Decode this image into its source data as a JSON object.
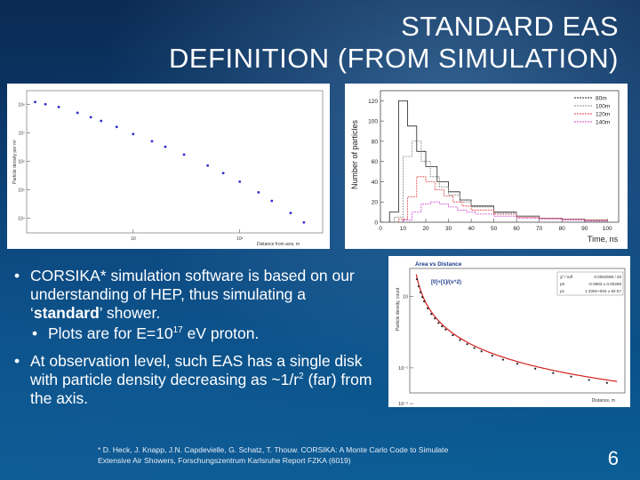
{
  "slide": {
    "title_line1": "STANDARD EAS",
    "title_line2": "DEFINITION (FROM SIMULATION)",
    "bullet1_text": "CORSIKA* simulation software is based on our understanding of HEP, thus simulating a ‘",
    "bullet1_bold": "standard",
    "bullet1_end": "’ shower.",
    "sub_bullet_pre": "Plots are for E=10",
    "sub_bullet_exp": "17",
    "sub_bullet_post": " eV proton.",
    "bullet2_pre": "At observation level, such EAS has a single disk with particle density decreasing as ~1/r",
    "bullet2_exp": "2",
    "bullet2_post": " (far) from the axis.",
    "footnote_line1": "* D. Heck, J. Knapp, J.N. Capdevielle, G. Schatz, T. Thouw. CORSIKA: A Monte Carlo Code to Simulate",
    "footnote_line2": "Extensive Air Showers, Forschungszentrum Karlsruhe Report FZKA (6019)",
    "page_number": "6",
    "bullet_glyph": "•"
  },
  "chart_data": [
    {
      "type": "scatter",
      "ylabel": "Particle density per m²",
      "xlabel": "Distance from axis, m",
      "xscale": "log",
      "yscale": "log",
      "ytick_labels": [
        "10⁸",
        "10⁷",
        "10⁶",
        "10⁵",
        "10⁴",
        "10³"
      ],
      "xtick_labels": [
        "10",
        "10²"
      ],
      "points": [
        [
          1.2,
          120000000.0
        ],
        [
          1.5,
          100000000.0
        ],
        [
          2,
          80000000.0
        ],
        [
          3,
          50000000.0
        ],
        [
          4,
          35000000.0
        ],
        [
          5,
          26000000.0
        ],
        [
          7,
          16000000.0
        ],
        [
          10,
          9000000.0
        ],
        [
          15,
          5000000.0
        ],
        [
          20,
          3200000.0
        ],
        [
          30,
          1700000.0
        ],
        [
          50,
          700000.0
        ],
        [
          70,
          380000.0
        ],
        [
          100,
          190000.0
        ],
        [
          150,
          80000.0
        ],
        [
          200,
          40000.0
        ],
        [
          300,
          15000.0
        ],
        [
          400,
          7000.0
        ]
      ],
      "color": "#2a2ad0"
    },
    {
      "type": "line",
      "ylabel": "Number of particles",
      "xlabel": "Time, ns",
      "xticks": [
        0,
        10,
        20,
        30,
        40,
        50,
        60,
        70,
        80,
        90,
        100
      ],
      "yticks": [
        0,
        20,
        40,
        60,
        80,
        100,
        120
      ],
      "ylim": [
        0,
        130
      ],
      "series": [
        {
          "name": "80m",
          "color": "#222222",
          "x": [
            4,
            8,
            12,
            16,
            20,
            25,
            30,
            35,
            40,
            50,
            60,
            70,
            80,
            90,
            100
          ],
          "y": [
            10,
            120,
            95,
            70,
            55,
            40,
            30,
            22,
            16,
            10,
            6,
            4,
            3,
            2,
            1
          ]
        },
        {
          "name": "100m",
          "color": "#888888",
          "x": [
            6,
            10,
            14,
            18,
            22,
            26,
            30,
            35,
            40,
            50,
            60,
            70,
            80,
            90,
            100
          ],
          "y": [
            5,
            65,
            80,
            60,
            45,
            35,
            27,
            20,
            15,
            9,
            6,
            4,
            3,
            2,
            1
          ]
        },
        {
          "name": "120m",
          "color": "#e04040",
          "x": [
            8,
            12,
            16,
            20,
            24,
            28,
            32,
            36,
            40,
            50,
            60,
            70,
            80,
            90,
            100
          ],
          "y": [
            3,
            25,
            45,
            40,
            32,
            26,
            20,
            16,
            12,
            8,
            5,
            4,
            3,
            2,
            1
          ]
        },
        {
          "name": "140m",
          "color": "#cc44cc",
          "x": [
            10,
            14,
            18,
            22,
            26,
            30,
            34,
            38,
            42,
            50,
            60,
            70,
            80,
            90,
            100
          ],
          "y": [
            2,
            10,
            18,
            20,
            18,
            15,
            12,
            10,
            8,
            6,
            4,
            3,
            2,
            1,
            1
          ]
        }
      ]
    },
    {
      "type": "scatter",
      "title": "Area vs Distance",
      "ylabel": "Particle density, count",
      "xlabel": "Distance, m",
      "fit_label": "[0]+[1]/(x^2)",
      "stats": [
        {
          "name": "χ² / ndf",
          "value": "0.0062598 / 26"
        },
        {
          "name": "p0",
          "value": "-0.0683 ± 0.00268"
        },
        {
          "name": "p1",
          "value": "1.330e+004 ± 82.57"
        }
      ],
      "ytick_labels": [
        "10",
        "10⁻¹",
        "10⁻²"
      ],
      "points": [
        [
          20,
          30
        ],
        [
          25,
          19
        ],
        [
          30,
          13
        ],
        [
          35,
          9.5
        ],
        [
          40,
          7.2
        ],
        [
          50,
          4.6
        ],
        [
          60,
          3.2
        ],
        [
          70,
          2.4
        ],
        [
          80,
          1.8
        ],
        [
          90,
          1.45
        ],
        [
          100,
          1.18
        ],
        [
          120,
          0.82
        ],
        [
          140,
          0.6
        ],
        [
          160,
          0.46
        ],
        [
          180,
          0.36
        ],
        [
          200,
          0.29
        ],
        [
          230,
          0.22
        ],
        [
          260,
          0.17
        ],
        [
          300,
          0.13
        ],
        [
          350,
          0.095
        ],
        [
          400,
          0.072
        ],
        [
          450,
          0.057
        ],
        [
          500,
          0.046
        ],
        [
          550,
          0.038
        ]
      ],
      "point_color": "#222222",
      "fit_color": "#d02020"
    }
  ]
}
